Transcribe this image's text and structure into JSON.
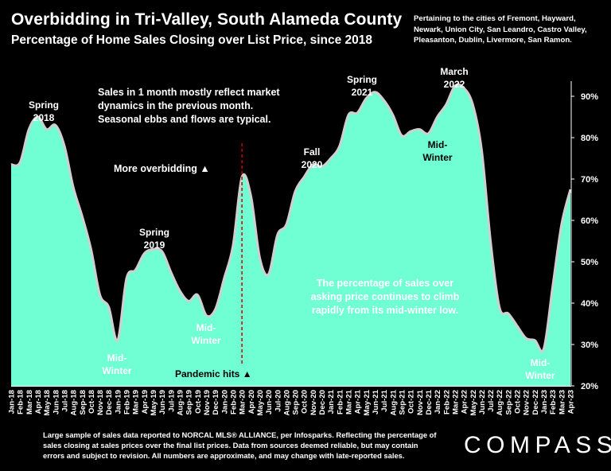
{
  "header": {
    "title": "Overbidding in Tri-Valley, South Alameda County",
    "subtitle": "Percentage of Home Sales Closing over List Price, since 2018",
    "cities_note": "Pertaining to the cities of Fremont, Hayward, Newark, Union City, San Leandro, Castro Valley, Pleasanton, Dublin, Livermore, San Ramon."
  },
  "footer": {
    "note": "Large sample of sales data reported to NORCAL MLS® ALLIANCE, per Infosparks. Reflecting the percentage of sales closing at sales prices over the final list prices. Data from sources deemed reliable, but may contain errors and subject to revision. All numbers are approximate, and may change with late-reported sales.",
    "logo": "COMPASS"
  },
  "colors": {
    "background": "#000000",
    "area_fill": "#6fffd2",
    "area_stroke": "#cfcfcf",
    "event_line": "#cc0000"
  },
  "chart_data": {
    "type": "area",
    "title": "Percentage of Home Sales Closing over List Price, since 2018",
    "xlabel": "",
    "ylabel": "",
    "ylim": [
      20,
      95
    ],
    "yticks": [
      "20%",
      "30%",
      "40%",
      "50%",
      "60%",
      "70%",
      "80%",
      "90%"
    ],
    "y_axis_position": "right",
    "grid": false,
    "categories": [
      "Jan-18",
      "Feb-18",
      "Mar-18",
      "Apr-18",
      "May-18",
      "Jun-18",
      "Jul-18",
      "Aug-18",
      "Sep-18",
      "Oct-18",
      "Nov-18",
      "Dec-18",
      "Jan-19",
      "Feb-19",
      "Mar-19",
      "Apr-19",
      "May-19",
      "Jun-19",
      "Jul-19",
      "Aug-19",
      "Sep-19",
      "Oct-19",
      "Nov-19",
      "Dec-19",
      "Jan-20",
      "Feb-20",
      "Mar-20",
      "Apr-20",
      "May-20",
      "Jun-20",
      "Jul-20",
      "Aug-20",
      "Sep-20",
      "Oct-20",
      "Nov-20",
      "Dec-20",
      "Jan-21",
      "Feb-21",
      "Mar-21",
      "Apr-21",
      "May-21",
      "Jun-21",
      "Jul-21",
      "Aug-21",
      "Sep-21",
      "Oct-21",
      "Nov-21",
      "Dec-21",
      "Jan-22",
      "Feb-22",
      "Mar-22",
      "Apr-22",
      "May-22",
      "Jun-22",
      "Jul-22",
      "Aug-22",
      "Sep-22",
      "Oct-22",
      "Nov-22",
      "Dec-22",
      "Jan-23",
      "Feb-23",
      "Mar-23",
      "Apr-23"
    ],
    "series": [
      {
        "values": [
          73.5,
          74,
          82,
          85,
          82,
          83,
          78,
          68,
          61,
          53,
          42,
          39,
          31,
          46,
          48,
          52,
          53,
          52.5,
          47.5,
          43,
          40.5,
          42,
          37,
          38.5,
          46,
          54,
          70.5,
          66,
          51,
          47,
          56.5,
          59,
          67,
          70.5,
          73.5,
          73,
          75,
          78,
          85.5,
          86,
          89.5,
          91,
          89,
          85.5,
          80.5,
          81.5,
          82,
          81,
          85,
          88,
          92.5,
          92,
          88,
          77,
          55,
          39,
          37.5,
          34.5,
          31.5,
          31,
          29,
          44,
          59,
          67.5
        ]
      }
    ],
    "annotations": [
      {
        "label": "Spring 2018",
        "lines": [
          "Spring",
          "2018"
        ],
        "month": "Apr-18"
      },
      {
        "label": "Mid-Winter",
        "lines": [
          "Mid-",
          "Winter"
        ],
        "month": "Jan-19"
      },
      {
        "label": "Spring 2019",
        "lines": [
          "Spring",
          "2019"
        ],
        "month": "May-19"
      },
      {
        "label": "Mid-Winter",
        "lines": [
          "Mid-",
          "Winter"
        ],
        "month": "Nov-19"
      },
      {
        "label": "Fall 2020",
        "lines": [
          "Fall",
          "2020"
        ],
        "month": "Nov-20"
      },
      {
        "label": "Spring 2021",
        "lines": [
          "Spring",
          "2021"
        ],
        "month": "May-21"
      },
      {
        "label": "Mid-Winter",
        "lines": [
          "Mid-",
          "Winter"
        ],
        "month": "Dec-21"
      },
      {
        "label": "March 2022",
        "lines": [
          "March",
          "2022"
        ],
        "month": "Mar-22"
      },
      {
        "label": "Mid-Winter",
        "lines": [
          "Mid-",
          "Winter"
        ],
        "month": "Jan-23"
      }
    ],
    "event": {
      "month": "Mar-20",
      "pandemic_label": "Pandemic hits ▲",
      "overbidding_label": "More overbidding ▲"
    },
    "notes": {
      "lag_note": [
        "Sales in 1 month mostly reflect market",
        "dynamics in the previous month.",
        "Seasonal ebbs and flows are typical."
      ],
      "trend_note": [
        "The percentage of sales over",
        "asking price continues to climb",
        "rapidly from its mid-winter low."
      ]
    }
  }
}
